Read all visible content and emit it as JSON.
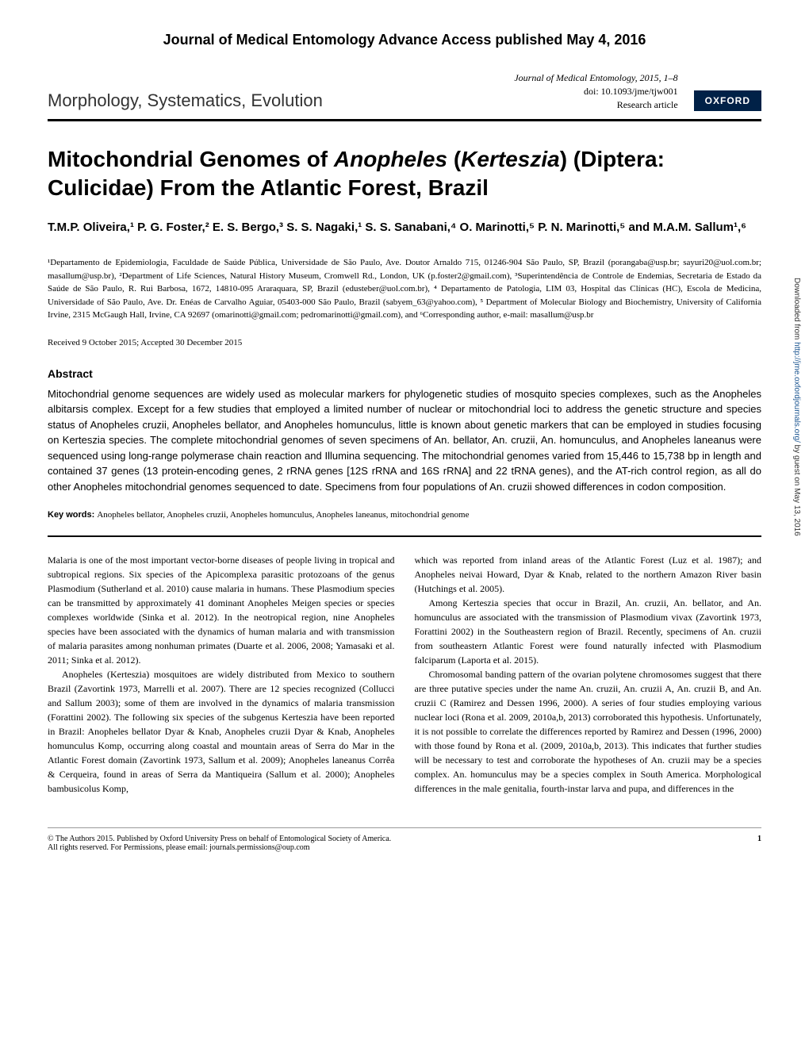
{
  "advance_header": "Journal of Medical Entomology Advance Access published May 4, 2016",
  "journal_meta": {
    "journal": "Journal of Medical Entomology",
    "year_pages": ", 2015, 1–8",
    "doi": "doi: 10.1093/jme/tjw001",
    "article_type": "Research article"
  },
  "section": "Morphology, Systematics, Evolution",
  "publisher_badge": "OXFORD",
  "title_prefix": "Mitochondrial Genomes of ",
  "title_italic1": "Anopheles",
  "title_mid": " (",
  "title_italic2": "Kerteszia",
  "title_suffix": ") (Diptera: Culicidae) From the Atlantic Forest, Brazil",
  "authors": "T.M.P. Oliveira,¹ P. G. Foster,² E. S. Bergo,³ S. S. Nagaki,¹ S. S. Sanabani,⁴ O. Marinotti,⁵ P. N. Marinotti,⁵ and M.A.M. Sallum¹,⁶",
  "affiliations": "¹Departamento de Epidemiologia, Faculdade de Saúde Pública, Universidade de São Paulo, Ave. Doutor Arnaldo 715, 01246-904 São Paulo, SP, Brazil (porangaba@usp.br; sayuri20@uol.com.br; masallum@usp.br), ²Department of Life Sciences, Natural History Museum, Cromwell Rd., London, UK (p.foster2@gmail.com), ³Superintendência de Controle de Endemias, Secretaria de Estado da Saúde de São Paulo, R. Rui Barbosa, 1672, 14810-095 Araraquara, SP, Brazil (edusteber@uol.com.br), ⁴ Departamento de Patologia, LIM 03, Hospital das Clínicas (HC), Escola de Medicina, Universidade of São Paulo, Ave. Dr. Enéas de Carvalho Aguiar, 05403-000 São Paulo, Brazil (sabyem_63@yahoo.com), ⁵ Department of Molecular Biology and Biochemistry, University of California Irvine, 2315 McGaugh Hall, Irvine, CA 92697 (omarinotti@gmail.com; pedromarinotti@gmail.com), and ⁶Corresponding author, e-mail: masallum@usp.br",
  "dates": "Received 9 October 2015; Accepted 30 December 2015",
  "abstract_heading": "Abstract",
  "abstract": "Mitochondrial genome sequences are widely used as molecular markers for phylogenetic studies of mosquito species complexes, such as the Anopheles albitarsis complex. Except for a few studies that employed a limited number of nuclear or mitochondrial loci to address the genetic structure and species status of Anopheles cruzii, Anopheles bellator, and Anopheles homunculus, little is known about genetic markers that can be employed in studies focusing on Kerteszia species. The complete mitochondrial genomes of seven specimens of An. bellator, An. cruzii, An. homunculus, and Anopheles laneanus were sequenced using long-range polymerase chain reaction and Illumina sequencing. The mitochondrial genomes varied from 15,446 to 15,738 bp in length and contained 37 genes (13 protein-encoding genes, 2 rRNA genes [12S rRNA and 16S rRNA] and 22 tRNA genes), and the AT-rich control region, as all do other Anopheles mitochondrial genomes sequenced to date. Specimens from four populations of An. cruzii showed differences in codon composition.",
  "keywords_label": "Key words: ",
  "keywords": "Anopheles bellator, Anopheles cruzii, Anopheles homunculus, Anopheles laneanus, mitochondrial genome",
  "col1_p1": "Malaria is one of the most important vector-borne diseases of people living in tropical and subtropical regions. Six species of the Apicomplexa parasitic protozoans of the genus Plasmodium (Sutherland et al. 2010) cause malaria in humans. These Plasmodium species can be transmitted by approximately 41 dominant Anopheles Meigen species or species complexes worldwide (Sinka et al. 2012). In the neotropical region, nine Anopheles species have been associated with the dynamics of human malaria and with transmission of malaria parasites among nonhuman primates (Duarte et al. 2006, 2008; Yamasaki et al. 2011; Sinka et al. 2012).",
  "col1_p2": "Anopheles (Kerteszia) mosquitoes are widely distributed from Mexico to southern Brazil (Zavortink 1973, Marrelli et al. 2007). There are 12 species recognized (Collucci and Sallum 2003); some of them are involved in the dynamics of malaria transmission (Forattini 2002). The following six species of the subgenus Kerteszia have been reported in Brazil: Anopheles bellator Dyar & Knab, Anopheles cruzii Dyar & Knab, Anopheles homunculus Komp, occurring along coastal and mountain areas of Serra do Mar in the Atlantic Forest domain (Zavortink 1973, Sallum et al. 2009); Anopheles laneanus Corrêa & Cerqueira, found in areas of Serra da Mantiqueira (Sallum et al. 2000); Anopheles bambusicolus Komp,",
  "col2_p1": "which was reported from inland areas of the Atlantic Forest (Luz et al. 1987); and Anopheles neivai Howard, Dyar & Knab, related to the northern Amazon River basin (Hutchings et al. 2005).",
  "col2_p2": "Among Kerteszia species that occur in Brazil, An. cruzii, An. bellator, and An. homunculus are associated with the transmission of Plasmodium vivax (Zavortink 1973, Forattini 2002) in the Southeastern region of Brazil. Recently, specimens of An. cruzii from southeastern Atlantic Forest were found naturally infected with Plasmodium falciparum (Laporta et al. 2015).",
  "col2_p3": "Chromosomal banding pattern of the ovarian polytene chromosomes suggest that there are three putative species under the name An. cruzii, An. cruzii A, An. cruzii B, and An. cruzii C (Ramirez and Dessen 1996, 2000). A series of four studies employing various nuclear loci (Rona et al. 2009, 2010a,b, 2013) corroborated this hypothesis. Unfortunately, it is not possible to correlate the differences reported by Ramirez and Dessen (1996, 2000) with those found by Rona et al. (2009, 2010a,b, 2013). This indicates that further studies will be necessary to test and corroborate the hypotheses of An. cruzii may be a species complex. An. homunculus may be a species complex in South America. Morphological differences in the male genitalia, fourth-instar larva and pupa, and differences in the",
  "footer_copyright": "© The Authors 2015. Published by Oxford University Press on behalf of Entomological Society of America.",
  "footer_rights": "All rights reserved. For Permissions, please email: journals.permissions@oup.com",
  "page_number": "1",
  "side_download": "Downloaded from ",
  "side_url": "http://jme.oxfordjournals.org/",
  "side_guest": " by guest on May 13, 2016",
  "colors": {
    "oxford_bg": "#002147",
    "oxford_text": "#ffffff",
    "link_color": "#1a5490",
    "text_color": "#000000",
    "bg_color": "#ffffff"
  },
  "typography": {
    "body_font": "Georgia, Times New Roman, serif",
    "heading_font": "Arial, sans-serif",
    "title_size": 28,
    "section_size": 22,
    "abstract_size": 13,
    "body_size": 12,
    "affil_size": 11
  }
}
